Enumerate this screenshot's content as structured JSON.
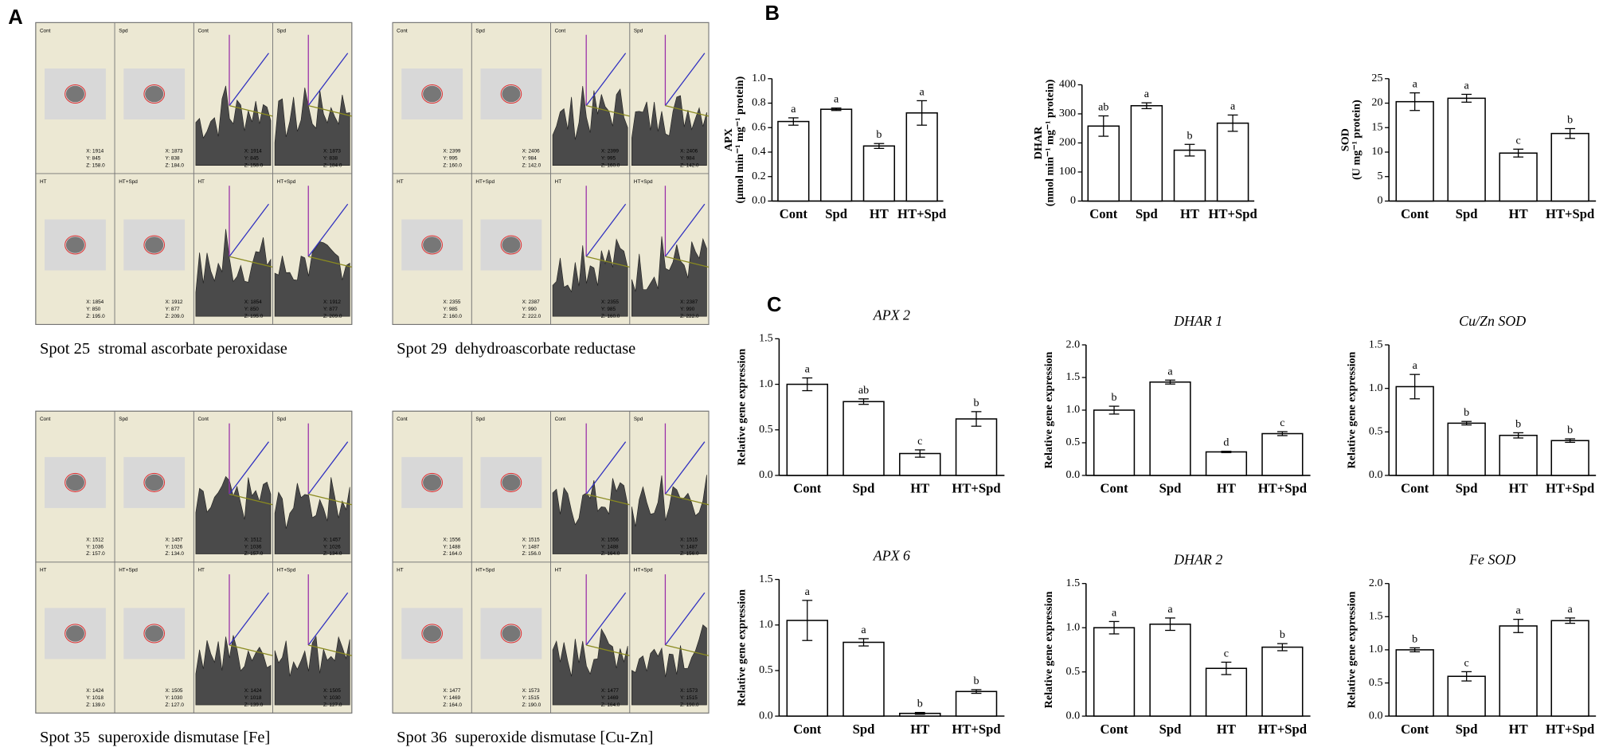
{
  "panel_labels": [
    "A",
    "B",
    "C"
  ],
  "spots": [
    {
      "caption": "Spot 25  stromal ascorbate peroxidase",
      "conditions": [
        {
          "label": "Cont",
          "coords": [
            "X: 1914",
            "Y: 845",
            "Z: 158.0"
          ]
        },
        {
          "label": "Spd",
          "coords": [
            "X: 1873",
            "Y: 838",
            "Z: 184.0"
          ]
        },
        {
          "label": "HT",
          "coords": [
            "X: 1854",
            "Y: 850",
            "Z: 195.0"
          ]
        },
        {
          "label": "HT+Spd",
          "coords": [
            "X: 1912",
            "Y: 877",
            "Z: 209.0"
          ]
        }
      ]
    },
    {
      "caption": "Spot 29  dehydroascorbate reductase",
      "conditions": [
        {
          "label": "Cont",
          "coords": [
            "X: 2399",
            "Y: 995",
            "Z: 160.0"
          ]
        },
        {
          "label": "Spd",
          "coords": [
            "X: 2406",
            "Y: 984",
            "Z: 142.0"
          ]
        },
        {
          "label": "HT",
          "coords": [
            "X: 2355",
            "Y: 985",
            "Z: 160.0"
          ]
        },
        {
          "label": "HT+Spd",
          "coords": [
            "X: 2387",
            "Y: 990",
            "Z: 222.0"
          ]
        }
      ]
    },
    {
      "caption": "Spot 35  superoxide dismutase [Fe]",
      "conditions": [
        {
          "label": "Cont",
          "coords": [
            "X: 1512",
            "Y: 1036",
            "Z: 157.0"
          ]
        },
        {
          "label": "Spd",
          "coords": [
            "X: 1457",
            "Y: 1026",
            "Z: 134.0"
          ]
        },
        {
          "label": "HT",
          "coords": [
            "X: 1424",
            "Y: 1018",
            "Z: 139.0"
          ]
        },
        {
          "label": "HT+Spd",
          "coords": [
            "X: 1505",
            "Y: 1030",
            "Z: 127.0"
          ]
        }
      ]
    },
    {
      "caption": "Spot 36  superoxide dismutase [Cu-Zn]",
      "conditions": [
        {
          "label": "Cont",
          "coords": [
            "X: 1556",
            "Y: 1488",
            "Z: 164.0"
          ]
        },
        {
          "label": "Spd",
          "coords": [
            "X: 1515",
            "Y: 1487",
            "Z: 156.0"
          ]
        },
        {
          "label": "HT",
          "coords": [
            "X: 1477",
            "Y: 1469",
            "Z: 164.0"
          ]
        },
        {
          "label": "HT+Spd",
          "coords": [
            "X: 1573",
            "Y: 1515",
            "Z: 190.0"
          ]
        }
      ]
    }
  ],
  "chart_data": [
    {
      "type": "bar",
      "ylabel": "APX",
      "ylabel_unit": "(μmol min⁻¹ mg⁻¹ protein)",
      "categories": [
        "Cont",
        "Spd",
        "HT",
        "HT+Spd"
      ],
      "values": [
        0.65,
        0.75,
        0.45,
        0.72
      ],
      "errors": [
        0.03,
        0.01,
        0.02,
        0.1
      ],
      "annotations": [
        "a",
        "a",
        "b",
        "a"
      ],
      "ylim": [
        0,
        1.0
      ],
      "yticks": [
        {
          "value": 0,
          "label": "0.0"
        },
        0.2,
        0.4,
        0.6,
        0.8,
        {
          "value": 1,
          "label": "1.0"
        }
      ],
      "color": "#ffffff"
    },
    {
      "type": "bar",
      "ylabel": "DHAR",
      "ylabel_unit": "(nmol min⁻¹ mg⁻¹ protein)",
      "categories": [
        "Cont",
        "Spd",
        "HT",
        "HT+Spd"
      ],
      "values": [
        258,
        328,
        175,
        268
      ],
      "errors": [
        35,
        10,
        20,
        28
      ],
      "annotations": [
        "ab",
        "a",
        "b",
        "a"
      ],
      "ylim": [
        0,
        400
      ],
      "yticks": [
        0,
        100,
        200,
        300,
        400
      ],
      "color": "#ffffff"
    },
    {
      "type": "bar",
      "ylabel": "SOD",
      "ylabel_unit": "(U mg⁻¹ protein)",
      "categories": [
        "Cont",
        "Spd",
        "HT",
        "HT+Spd"
      ],
      "values": [
        20.3,
        21,
        9.8,
        13.8
      ],
      "errors": [
        1.8,
        0.8,
        0.8,
        1
      ],
      "annotations": [
        "a",
        "a",
        "c",
        "b"
      ],
      "ylim": [
        0,
        25
      ],
      "yticks": [
        0,
        5,
        10,
        15,
        20,
        25
      ],
      "color": "#ffffff"
    },
    {
      "type": "bar",
      "title": "APX 2",
      "ylabel": "Relative gene expression",
      "categories": [
        "Cont",
        "Spd",
        "HT",
        "HT+Spd"
      ],
      "values": [
        1.0,
        0.81,
        0.24,
        0.62
      ],
      "errors": [
        0.07,
        0.03,
        0.04,
        0.08
      ],
      "annotations": [
        "a",
        "ab",
        "c",
        "b"
      ],
      "ylim": [
        0,
        1.5
      ],
      "yticks": [
        {
          "value": 0,
          "label": "0.0"
        },
        0.5,
        {
          "value": 1,
          "label": "1.0"
        },
        1.5
      ],
      "color": "#ffffff"
    },
    {
      "type": "bar",
      "title": "DHAR 1",
      "ylabel": "Relative gene expression",
      "categories": [
        "Cont",
        "Spd",
        "HT",
        "HT+Spd"
      ],
      "values": [
        1.0,
        1.43,
        0.36,
        0.64
      ],
      "errors": [
        0.06,
        0.03,
        0.01,
        0.03
      ],
      "annotations": [
        "b",
        "a",
        "d",
        "c"
      ],
      "ylim": [
        0,
        2.0
      ],
      "yticks": [
        {
          "value": 0,
          "label": "0.0"
        },
        0.5,
        {
          "value": 1,
          "label": "1.0"
        },
        1.5,
        {
          "value": 2,
          "label": "2.0"
        }
      ],
      "color": "#ffffff"
    },
    {
      "type": "bar",
      "title": "Cu/Zn SOD",
      "ylabel": "Relative gene expression",
      "categories": [
        "Cont",
        "Spd",
        "HT",
        "HT+Spd"
      ],
      "values": [
        1.02,
        0.6,
        0.46,
        0.4
      ],
      "errors": [
        0.14,
        0.02,
        0.03,
        0.02
      ],
      "annotations": [
        "a",
        "b",
        "b",
        "b"
      ],
      "ylim": [
        0,
        1.5
      ],
      "yticks": [
        {
          "value": 0,
          "label": "0.0"
        },
        0.5,
        {
          "value": 1,
          "label": "1.0"
        },
        1.5
      ],
      "color": "#ffffff"
    },
    {
      "type": "bar",
      "title": "APX 6",
      "ylabel": "Relative gene expression",
      "categories": [
        "Cont",
        "Spd",
        "HT",
        "HT+Spd"
      ],
      "values": [
        1.05,
        0.81,
        0.03,
        0.27
      ],
      "errors": [
        0.22,
        0.04,
        0.01,
        0.02
      ],
      "annotations": [
        "a",
        "a",
        "b",
        "b"
      ],
      "ylim": [
        0,
        1.5
      ],
      "yticks": [
        {
          "value": 0,
          "label": "0.0"
        },
        0.5,
        {
          "value": 1,
          "label": "1.0"
        },
        1.5
      ],
      "color": "#ffffff"
    },
    {
      "type": "bar",
      "title": "DHAR 2",
      "ylabel": "Relative gene expression",
      "categories": [
        "Cont",
        "Spd",
        "HT",
        "HT+Spd"
      ],
      "values": [
        1.0,
        1.04,
        0.54,
        0.78
      ],
      "errors": [
        0.07,
        0.07,
        0.07,
        0.04
      ],
      "annotations": [
        "a",
        "a",
        "c",
        "b"
      ],
      "ylim": [
        0,
        1.5
      ],
      "yticks": [
        {
          "value": 0,
          "label": "0.0"
        },
        0.5,
        {
          "value": 1,
          "label": "1.0"
        },
        1.5
      ],
      "color": "#ffffff"
    },
    {
      "type": "bar",
      "title": "Fe SOD",
      "ylabel": "Relative gene expression",
      "categories": [
        "Cont",
        "Spd",
        "HT",
        "HT+Spd"
      ],
      "values": [
        1.0,
        0.6,
        1.36,
        1.44
      ],
      "errors": [
        0.03,
        0.07,
        0.1,
        0.04
      ],
      "annotations": [
        "b",
        "c",
        "a",
        "a"
      ],
      "ylim": [
        0,
        2.0
      ],
      "yticks": [
        {
          "value": 0,
          "label": "0.0"
        },
        0.5,
        {
          "value": 1,
          "label": "1.0"
        },
        1.5,
        {
          "value": 2,
          "label": "2.0"
        }
      ],
      "color": "#ffffff"
    }
  ]
}
